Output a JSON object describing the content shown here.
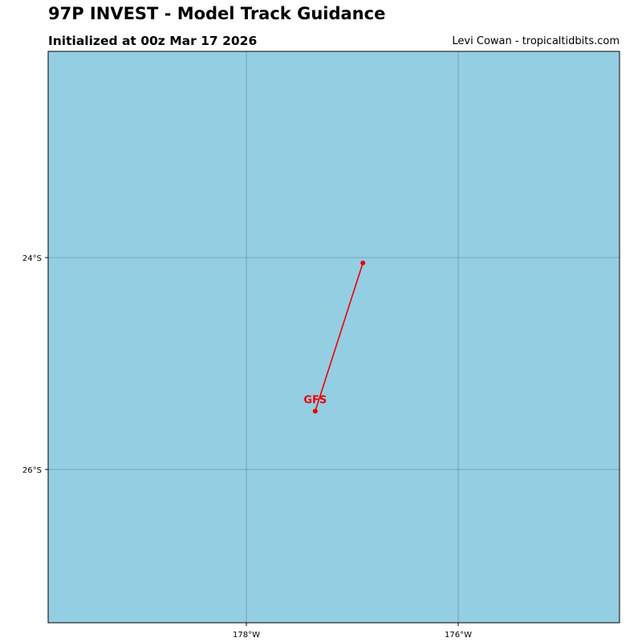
{
  "header": {
    "title": "97P INVEST - Model Track Guidance",
    "subtitle": "Initialized at 00z Mar 17 2026",
    "credit": "Levi Cowan - tropicaltidbits.com"
  },
  "map": {
    "ocean_color": "#94cee3",
    "grid_color": "#4a6f78",
    "lon_ticks": [
      {
        "value": -178,
        "label": "178°W"
      },
      {
        "value": -176,
        "label": "176°W"
      }
    ],
    "lat_ticks": [
      {
        "value": -24,
        "label": "24°S"
      },
      {
        "value": -26,
        "label": "26°S"
      }
    ],
    "tracks": [
      {
        "model": "GFS",
        "color": "#ee0000",
        "points": [
          {
            "lon": -176.9,
            "lat": -24.05
          },
          {
            "lon": -177.35,
            "lat": -25.45
          }
        ]
      }
    ]
  }
}
